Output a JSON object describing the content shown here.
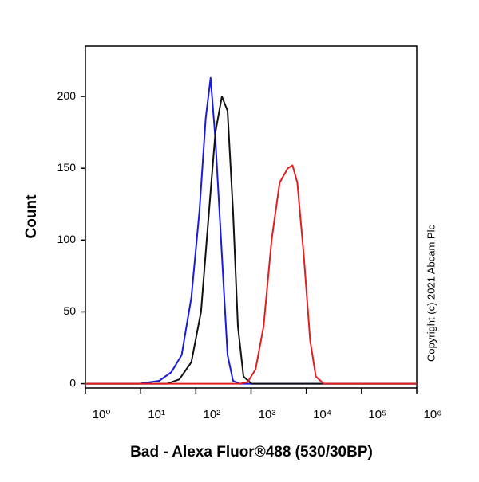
{
  "chart_data": {
    "type": "line",
    "x_label": "Bad - Alexa Fluor®488 (530/30BP)",
    "y_label": "Count",
    "annotation": "Copyright (c) 2021 Abcam Plc",
    "xscale": "log",
    "xlim": [
      1,
      1000000
    ],
    "xticks": [
      {
        "value": 1,
        "label": "10⁰"
      },
      {
        "value": 10,
        "label": "10¹"
      },
      {
        "value": 100,
        "label": "10²"
      },
      {
        "value": 1000,
        "label": "10³"
      },
      {
        "value": 10000,
        "label": "10⁴"
      },
      {
        "value": 100000,
        "label": "10⁵"
      },
      {
        "value": 1000000,
        "label": "10⁶"
      }
    ],
    "ylim": [
      -3,
      235
    ],
    "yticks": [
      0,
      50,
      100,
      150,
      200
    ],
    "series": [
      {
        "color": "#1a1adc",
        "x": [
          1,
          9.4,
          21.7,
          35.9,
          55.5,
          82.9,
          116,
          151,
          185,
          226,
          296,
          374,
          472,
          618,
          1000000
        ],
        "values": [
          0,
          0,
          2,
          8,
          20,
          60,
          120,
          185,
          213,
          170,
          90,
          20,
          2,
          0,
          0
        ]
      },
      {
        "color": "#111111",
        "x": [
          1,
          30.4,
          50.2,
          82.9,
          124,
          173,
          226,
          296,
          374,
          472,
          578,
          730,
          1020,
          1000000
        ],
        "values": [
          0,
          0,
          3,
          15,
          50,
          120,
          175,
          200,
          190,
          120,
          40,
          5,
          0,
          0
        ]
      },
      {
        "color": "#e02020",
        "x": [
          1,
          618,
          863,
          1206,
          1686,
          2355,
          3289,
          4603,
          5623,
          6871,
          8974,
          11740,
          14860,
          20750,
          1000000
        ],
        "values": [
          0,
          0,
          1,
          10,
          40,
          100,
          140,
          150,
          152,
          140,
          90,
          30,
          5,
          0,
          0
        ]
      }
    ]
  }
}
